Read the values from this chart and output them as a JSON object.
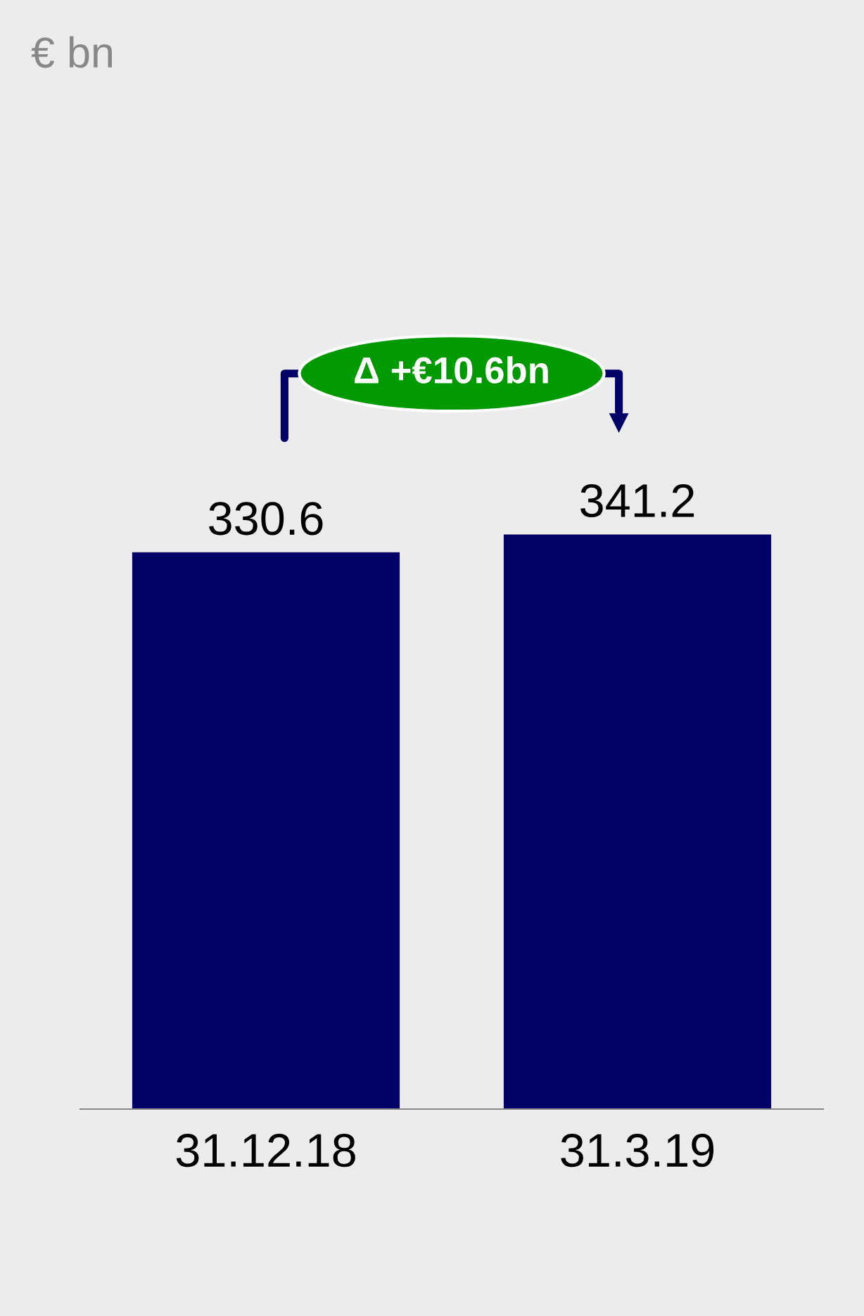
{
  "chart_data": {
    "type": "bar",
    "categories": [
      "31.12.18",
      "31.3.19"
    ],
    "values": [
      330.6,
      341.2
    ],
    "color": "#000066",
    "data_labels": true,
    "grid": false,
    "tick_labels": "x",
    "annotations": [
      "€ bn",
      "Δ +€10.6bn"
    ]
  }
}
